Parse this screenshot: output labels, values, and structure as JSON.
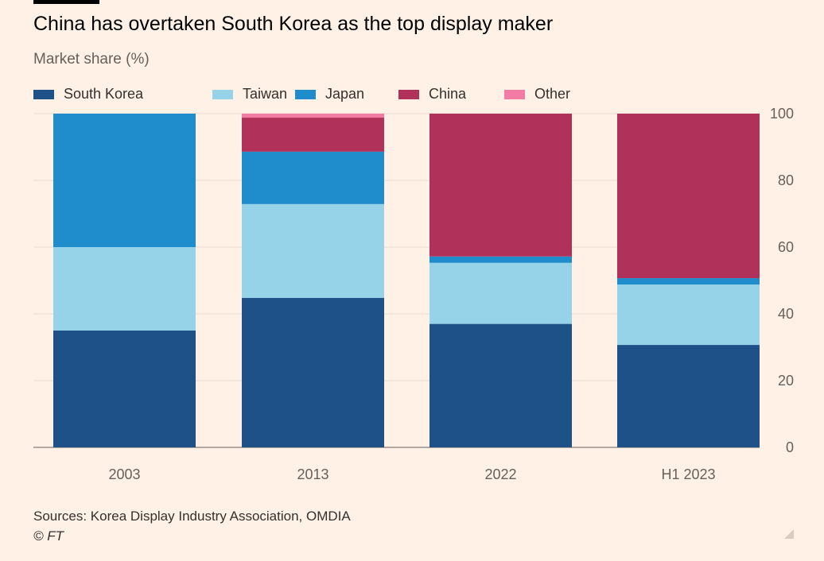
{
  "title": "China has overtaken South Korea as the top display maker",
  "subtitle": "Market share (%)",
  "source": "Sources: Korea Display Industry Association, OMDIA",
  "copyright": "© FT",
  "chart_data": {
    "type": "bar",
    "stacked": true,
    "categories": [
      "2003",
      "2013",
      "2022",
      "H1 2023"
    ],
    "series": [
      {
        "name": "South Korea",
        "color": "#1f5189",
        "values": [
          35,
          44.8,
          37,
          30.7
        ]
      },
      {
        "name": "Taiwan",
        "color": "#96d2e8",
        "values": [
          25,
          28.1,
          18.3,
          18.1
        ]
      },
      {
        "name": "Japan",
        "color": "#1f8ccb",
        "values": [
          40,
          15.7,
          1.9,
          1.9
        ]
      },
      {
        "name": "China",
        "color": "#b0325b",
        "values": [
          0,
          10.2,
          42.8,
          49.3
        ]
      },
      {
        "name": "Other",
        "color": "#f27ca3",
        "values": [
          0,
          1.2,
          0,
          0
        ]
      }
    ],
    "ylim": [
      0,
      100
    ],
    "yticks": [
      "0",
      "20",
      "40",
      "60",
      "80",
      "100"
    ],
    "yaxis_position": "right",
    "grid": true,
    "legend_position": "top-left"
  }
}
